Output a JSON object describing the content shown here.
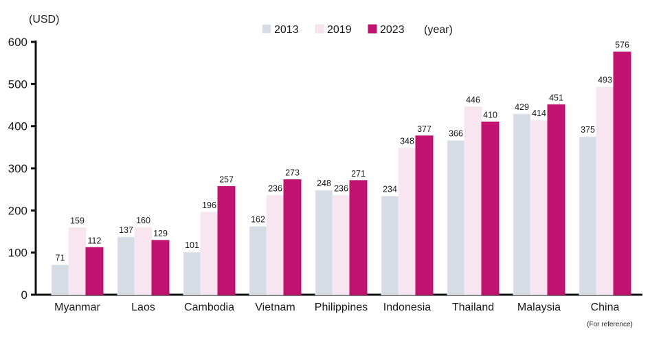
{
  "chart_data": {
    "type": "bar",
    "ylabel": "(USD)",
    "legend_suffix": "(year)",
    "legend_placement": "top-center",
    "ylim": [
      0,
      600
    ],
    "yticks": [
      0,
      100,
      200,
      300,
      400,
      500,
      600
    ],
    "grid": false,
    "categories": [
      "Myanmar",
      "Laos",
      "Cambodia",
      "Vietnam",
      "Philippines",
      "Indonesia",
      "Thailand",
      "Malaysia",
      "China"
    ],
    "category_notes": {
      "China": "(For reference)"
    },
    "series": [
      {
        "name": "2013",
        "color": "#d6dce4",
        "values": [
          71,
          137,
          101,
          162,
          248,
          234,
          366,
          429,
          375
        ]
      },
      {
        "name": "2019",
        "color": "#f9e5ef",
        "values": [
          159,
          160,
          196,
          236,
          236,
          348,
          446,
          414,
          493
        ]
      },
      {
        "name": "2023",
        "color": "#c0126f",
        "values": [
          112,
          129,
          257,
          273,
          271,
          377,
          410,
          451,
          576
        ]
      }
    ]
  }
}
